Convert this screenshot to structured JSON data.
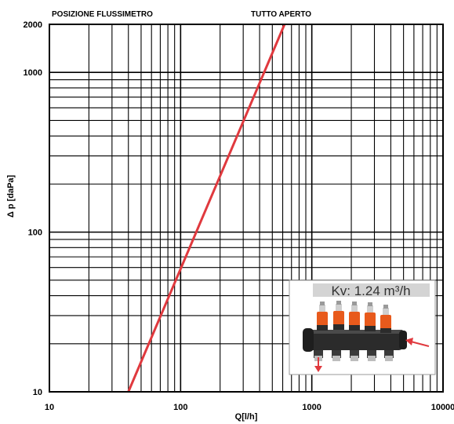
{
  "chart_data": {
    "type": "line",
    "title": "",
    "header_left": "POSIZIONE FLUSSIMETRO",
    "header_right": "TUTTO APERTO",
    "xlabel": "Q[l/h]",
    "ylabel": "Δ p [daPa]",
    "x_scale": "log",
    "y_scale": "log",
    "xlim": [
      10,
      10000
    ],
    "ylim": [
      10,
      2000
    ],
    "x_tick_labels": [
      "10",
      "100",
      "1000",
      "10000"
    ],
    "y_tick_labels": [
      "10",
      "100",
      "1000",
      "2000"
    ],
    "grid": true,
    "series": [
      {
        "name": "",
        "color": "#e0393e",
        "x": [
          40,
          620
        ],
        "y": [
          10,
          2000
        ]
      }
    ],
    "inset": {
      "kv_label": "Kv: 1.24 m³/h",
      "image": "manifold-illustration"
    }
  }
}
